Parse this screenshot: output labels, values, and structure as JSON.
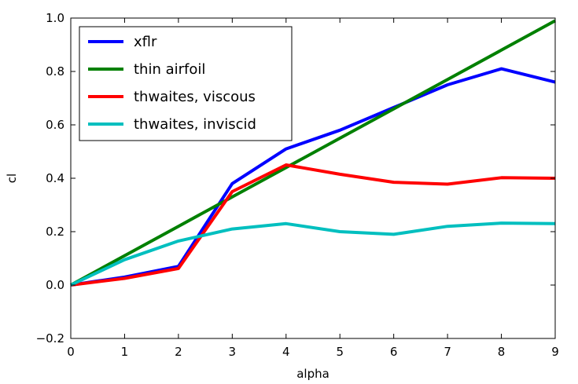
{
  "chart_data": {
    "type": "line",
    "title": "",
    "xlabel": "alpha",
    "ylabel": "cl",
    "xlim": [
      0,
      9
    ],
    "ylim": [
      -0.2,
      1.0
    ],
    "xticks": [
      0,
      1,
      2,
      3,
      4,
      5,
      6,
      7,
      8,
      9
    ],
    "yticks": [
      -0.2,
      0.0,
      0.2,
      0.4,
      0.6,
      0.8,
      1.0
    ],
    "xtick_labels": [
      "0",
      "1",
      "2",
      "3",
      "4",
      "5",
      "6",
      "7",
      "8",
      "9"
    ],
    "ytick_labels": [
      "−0.2",
      "0.0",
      "0.2",
      "0.4",
      "0.6",
      "0.8",
      "1.0"
    ],
    "grid": false,
    "legend_position": "top-left",
    "x": [
      0,
      1,
      2,
      3,
      4,
      5,
      6,
      7,
      8,
      9
    ],
    "series": [
      {
        "name": "xflr",
        "color": "#0000ff",
        "values": [
          0.0,
          0.03,
          0.07,
          0.38,
          0.51,
          0.58,
          0.665,
          0.75,
          0.81,
          0.76
        ]
      },
      {
        "name": "thin airfoil",
        "color": "#008000",
        "values": [
          0.0,
          0.11,
          0.22,
          0.33,
          0.44,
          0.55,
          0.66,
          0.77,
          0.88,
          0.99
        ]
      },
      {
        "name": "thwaites, viscous",
        "color": "#ff0000",
        "values": [
          0.0,
          0.025,
          0.062,
          0.35,
          0.45,
          0.415,
          0.385,
          0.378,
          0.402,
          0.4
        ]
      },
      {
        "name": "thwaites, inviscid",
        "color": "#00bfbf",
        "values": [
          0.0,
          0.095,
          0.165,
          0.21,
          0.23,
          0.2,
          0.19,
          0.22,
          0.232,
          0.23
        ]
      }
    ]
  }
}
